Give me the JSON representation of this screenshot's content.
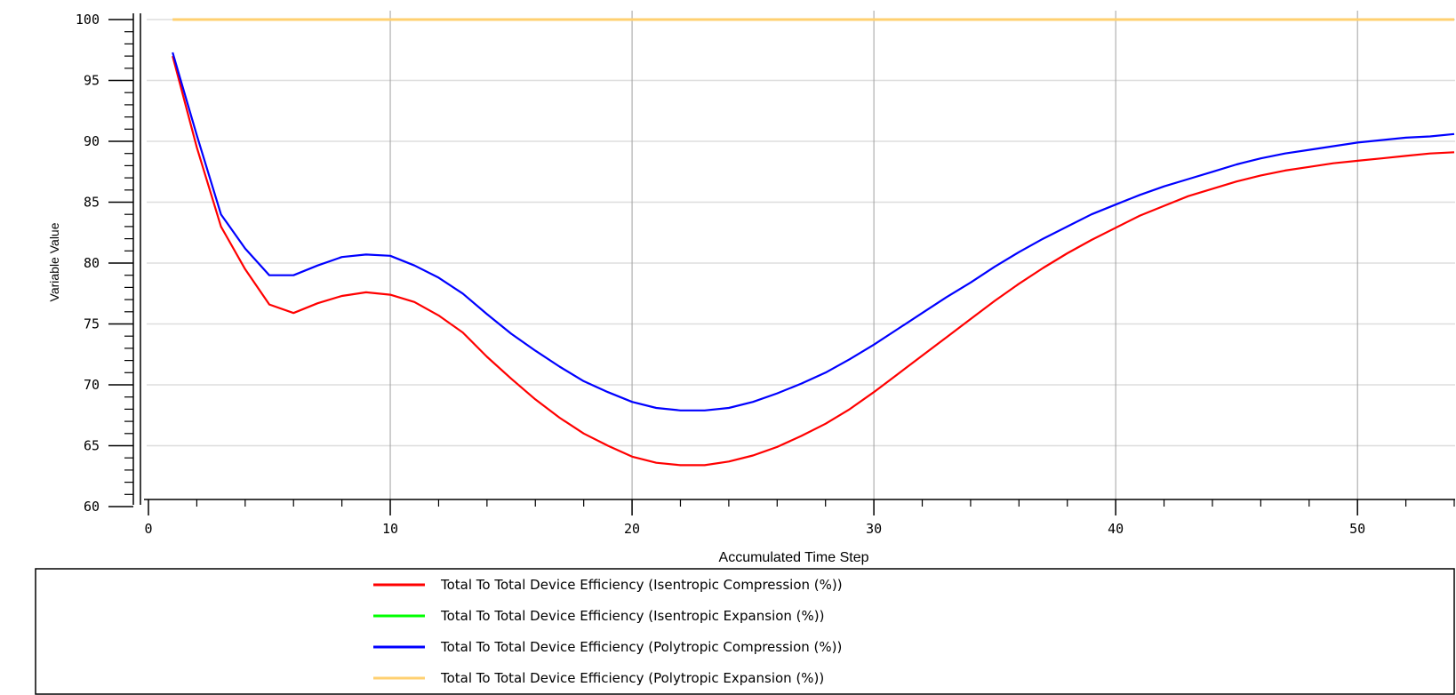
{
  "chart_data": {
    "type": "line",
    "title": "",
    "xlabel": "Accumulated Time Step",
    "ylabel": "Variable Value",
    "xlim": [
      0,
      54
    ],
    "ylim": [
      60,
      100
    ],
    "xticks": [
      "0",
      "10",
      "20",
      "30",
      "40",
      "50"
    ],
    "yticks": [
      "60",
      "65",
      "70",
      "75",
      "80",
      "85",
      "90",
      "95",
      "100"
    ],
    "grid": true,
    "legend_placement": "bottom",
    "series": [
      {
        "name": "Total To Total Device Efficiency (Isentropic Compression (%))",
        "color": "#ff0000",
        "points": [
          [
            1,
            97.0
          ],
          [
            2,
            89.5
          ],
          [
            3,
            83.0
          ],
          [
            4,
            79.5
          ],
          [
            5,
            76.6
          ],
          [
            6,
            75.9
          ],
          [
            7,
            76.7
          ],
          [
            8,
            77.3
          ],
          [
            9,
            77.6
          ],
          [
            10,
            77.4
          ],
          [
            11,
            76.8
          ],
          [
            12,
            75.7
          ],
          [
            13,
            74.3
          ],
          [
            14,
            72.3
          ],
          [
            15,
            70.5
          ],
          [
            16,
            68.8
          ],
          [
            17,
            67.3
          ],
          [
            18,
            66.0
          ],
          [
            19,
            65.0
          ],
          [
            20,
            64.1
          ],
          [
            21,
            63.6
          ],
          [
            22,
            63.4
          ],
          [
            23,
            63.4
          ],
          [
            24,
            63.7
          ],
          [
            25,
            64.2
          ],
          [
            26,
            64.9
          ],
          [
            27,
            65.8
          ],
          [
            28,
            66.8
          ],
          [
            29,
            68.0
          ],
          [
            30,
            69.4
          ],
          [
            31,
            70.9
          ],
          [
            32,
            72.4
          ],
          [
            33,
            73.9
          ],
          [
            34,
            75.4
          ],
          [
            35,
            76.9
          ],
          [
            36,
            78.3
          ],
          [
            37,
            79.6
          ],
          [
            38,
            80.8
          ],
          [
            39,
            81.9
          ],
          [
            40,
            82.9
          ],
          [
            41,
            83.9
          ],
          [
            42,
            84.7
          ],
          [
            43,
            85.5
          ],
          [
            44,
            86.1
          ],
          [
            45,
            86.7
          ],
          [
            46,
            87.2
          ],
          [
            47,
            87.6
          ],
          [
            48,
            87.9
          ],
          [
            49,
            88.2
          ],
          [
            50,
            88.4
          ],
          [
            51,
            88.6
          ],
          [
            52,
            88.8
          ],
          [
            53,
            89.0
          ],
          [
            54,
            89.1
          ]
        ]
      },
      {
        "name": "Total To Total Device Efficiency (Isentropic Expansion (%))",
        "color": "#00ff00",
        "points": []
      },
      {
        "name": "Total To Total Device Efficiency (Polytropic Compression (%))",
        "color": "#0000ff",
        "points": [
          [
            1,
            97.3
          ],
          [
            2,
            90.5
          ],
          [
            3,
            84.0
          ],
          [
            4,
            81.2
          ],
          [
            5,
            79.0
          ],
          [
            6,
            79.0
          ],
          [
            7,
            79.8
          ],
          [
            8,
            80.5
          ],
          [
            9,
            80.7
          ],
          [
            10,
            80.6
          ],
          [
            11,
            79.8
          ],
          [
            12,
            78.8
          ],
          [
            13,
            77.5
          ],
          [
            14,
            75.8
          ],
          [
            15,
            74.2
          ],
          [
            16,
            72.8
          ],
          [
            17,
            71.5
          ],
          [
            18,
            70.3
          ],
          [
            19,
            69.4
          ],
          [
            20,
            68.6
          ],
          [
            21,
            68.1
          ],
          [
            22,
            67.9
          ],
          [
            23,
            67.9
          ],
          [
            24,
            68.1
          ],
          [
            25,
            68.6
          ],
          [
            26,
            69.3
          ],
          [
            27,
            70.1
          ],
          [
            28,
            71.0
          ],
          [
            29,
            72.1
          ],
          [
            30,
            73.3
          ],
          [
            31,
            74.6
          ],
          [
            32,
            75.9
          ],
          [
            33,
            77.2
          ],
          [
            34,
            78.4
          ],
          [
            35,
            79.7
          ],
          [
            36,
            80.9
          ],
          [
            37,
            82.0
          ],
          [
            38,
            83.0
          ],
          [
            39,
            84.0
          ],
          [
            40,
            84.8
          ],
          [
            41,
            85.6
          ],
          [
            42,
            86.3
          ],
          [
            43,
            86.9
          ],
          [
            44,
            87.5
          ],
          [
            45,
            88.1
          ],
          [
            46,
            88.6
          ],
          [
            47,
            89.0
          ],
          [
            48,
            89.3
          ],
          [
            49,
            89.6
          ],
          [
            50,
            89.9
          ],
          [
            51,
            90.1
          ],
          [
            52,
            90.3
          ],
          [
            53,
            90.4
          ],
          [
            54,
            90.6
          ]
        ]
      },
      {
        "name": "Total To Total Device Efficiency (Polytropic Expansion (%))",
        "color": "#ffd070",
        "points": [
          [
            1,
            100.0
          ],
          [
            54,
            100.0
          ]
        ]
      }
    ]
  }
}
